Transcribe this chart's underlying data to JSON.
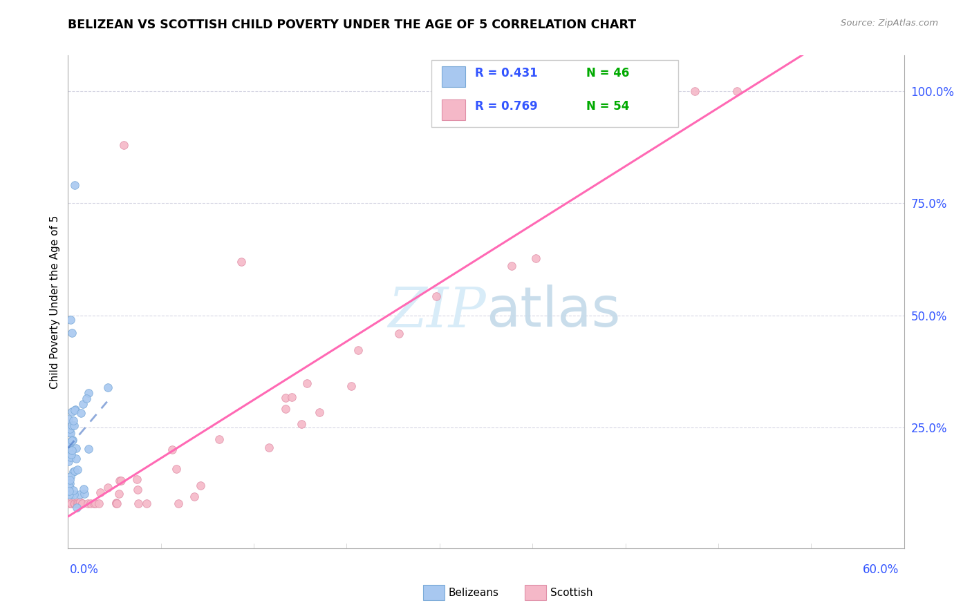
{
  "title": "BELIZEAN VS SCOTTISH CHILD POVERTY UNDER THE AGE OF 5 CORRELATION CHART",
  "source": "Source: ZipAtlas.com",
  "ylabel": "Child Poverty Under the Age of 5",
  "belizean_R": 0.431,
  "belizean_N": 46,
  "scottish_R": 0.769,
  "scottish_N": 54,
  "belizean_color": "#A8C8F0",
  "belizean_edge": "#7AAAD8",
  "scottish_color": "#F5B8C8",
  "scottish_edge": "#E090A8",
  "belizean_line_color": "#4472C4",
  "scottish_line_color": "#FF69B4",
  "R_color": "#3355FF",
  "N_color": "#00AA00",
  "watermark_color": "#D8ECF8",
  "xmin": 0.0,
  "xmax": 0.6,
  "ymin": -0.02,
  "ymax": 1.08,
  "yticks": [
    0.25,
    0.5,
    0.75,
    1.0
  ],
  "ytick_labels": [
    "25.0%",
    "50.0%",
    "75.0%",
    "100.0%"
  ]
}
